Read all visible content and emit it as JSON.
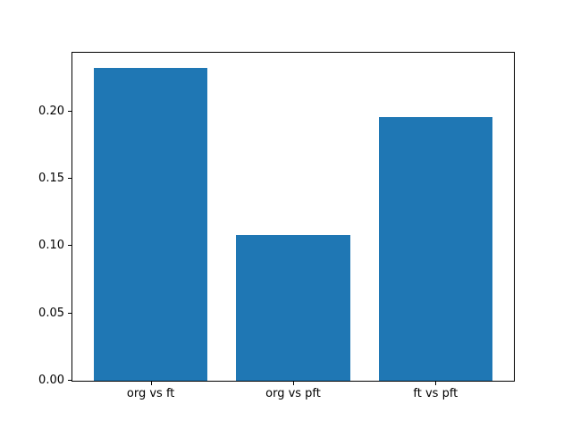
{
  "chart_data": {
    "type": "bar",
    "categories": [
      "org vs ft",
      "org vs pft",
      "ft vs pft"
    ],
    "values": [
      0.232,
      0.108,
      0.196
    ],
    "title": "",
    "xlabel": "",
    "ylabel": "",
    "ylim": [
      0,
      0.2436
    ],
    "yticks": [
      0.0,
      0.05,
      0.1,
      0.15,
      0.2
    ],
    "ytick_format_decimals": 2,
    "bar_color": "#1f77b4",
    "grid": false,
    "legend_position": "none"
  },
  "colors": {
    "bar": "#1f77b4",
    "background": "#ffffff",
    "axis": "#000000",
    "text": "#000000"
  }
}
